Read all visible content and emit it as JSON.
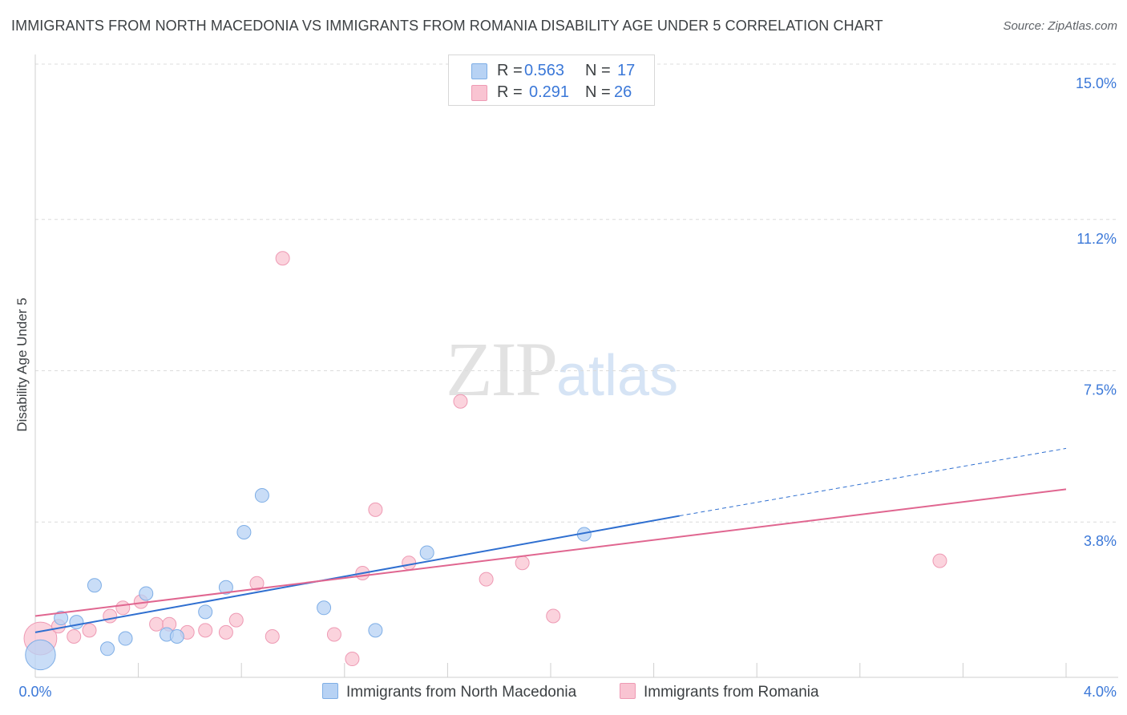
{
  "title": "IMMIGRANTS FROM NORTH MACEDONIA VS IMMIGRANTS FROM ROMANIA DISABILITY AGE UNDER 5 CORRELATION CHART",
  "source": "Source: ZipAtlas.com",
  "watermark": {
    "zip": "ZIP",
    "atlas": "atlas"
  },
  "colors": {
    "blue_fill": "#b7d2f4",
    "blue_stroke": "#7eaee6",
    "blue_line": "#2f6fd0",
    "pink_fill": "#f9c4d2",
    "pink_stroke": "#ee9ab4",
    "pink_line": "#e06690",
    "tick_text": "#3b78d8",
    "grid": "#dcdcdc"
  },
  "legend": {
    "r_label": "R =",
    "n_label": "N =",
    "rows": [
      {
        "r": "0.563",
        "n": "17"
      },
      {
        "r": "0.291",
        "n": "26"
      }
    ]
  },
  "chart_data": {
    "type": "scatter",
    "title": "IMMIGRANTS FROM NORTH MACEDONIA VS IMMIGRANTS FROM ROMANIA DISABILITY AGE UNDER 5 CORRELATION CHART",
    "xlabel": "",
    "ylabel": "Disability Age Under 5",
    "xlim": [
      0,
      4.0
    ],
    "ylim": [
      0,
      15.0
    ],
    "x_tick_labels": [
      "0.0%",
      "4.0%"
    ],
    "y_ticks": [
      3.8,
      7.5,
      11.2,
      15.0
    ],
    "y_tick_labels": [
      "3.8%",
      "7.5%",
      "11.2%",
      "15.0%"
    ],
    "grid": true,
    "legend_position": "top-center",
    "series": [
      {
        "name": "Immigrants from North Macedonia",
        "r": 0.563,
        "n": 17,
        "points": [
          {
            "x": 0.02,
            "y": 0.55,
            "s": 2.2
          },
          {
            "x": 0.1,
            "y": 1.45,
            "s": 1
          },
          {
            "x": 0.16,
            "y": 1.35,
            "s": 1
          },
          {
            "x": 0.23,
            "y": 2.25,
            "s": 1
          },
          {
            "x": 0.28,
            "y": 0.7,
            "s": 1
          },
          {
            "x": 0.35,
            "y": 0.95,
            "s": 1
          },
          {
            "x": 0.43,
            "y": 2.05,
            "s": 1
          },
          {
            "x": 0.51,
            "y": 1.05,
            "s": 1
          },
          {
            "x": 0.55,
            "y": 1.0,
            "s": 1
          },
          {
            "x": 0.66,
            "y": 1.6,
            "s": 1
          },
          {
            "x": 0.74,
            "y": 2.2,
            "s": 1
          },
          {
            "x": 0.81,
            "y": 3.55,
            "s": 1
          },
          {
            "x": 0.88,
            "y": 4.45,
            "s": 1
          },
          {
            "x": 1.12,
            "y": 1.7,
            "s": 1
          },
          {
            "x": 1.32,
            "y": 1.15,
            "s": 1
          },
          {
            "x": 1.52,
            "y": 3.05,
            "s": 1
          },
          {
            "x": 2.13,
            "y": 3.5,
            "s": 1
          }
        ],
        "trend": {
          "x0": 0.0,
          "y0": 1.1,
          "x1": 2.5,
          "y1": 3.95,
          "dashed_to_x": 4.0,
          "dashed_to_y": 5.6
        }
      },
      {
        "name": "Immigrants from Romania",
        "r": 0.291,
        "n": 26,
        "points": [
          {
            "x": 0.02,
            "y": 0.95,
            "s": 2.4
          },
          {
            "x": 0.09,
            "y": 1.25,
            "s": 1
          },
          {
            "x": 0.15,
            "y": 1.0,
            "s": 1
          },
          {
            "x": 0.21,
            "y": 1.15,
            "s": 1
          },
          {
            "x": 0.29,
            "y": 1.5,
            "s": 1
          },
          {
            "x": 0.34,
            "y": 1.7,
            "s": 1
          },
          {
            "x": 0.41,
            "y": 1.85,
            "s": 1
          },
          {
            "x": 0.47,
            "y": 1.3,
            "s": 1
          },
          {
            "x": 0.52,
            "y": 1.3,
            "s": 1
          },
          {
            "x": 0.59,
            "y": 1.1,
            "s": 1
          },
          {
            "x": 0.66,
            "y": 1.15,
            "s": 1
          },
          {
            "x": 0.74,
            "y": 1.1,
            "s": 1
          },
          {
            "x": 0.78,
            "y": 1.4,
            "s": 1
          },
          {
            "x": 0.86,
            "y": 2.3,
            "s": 1
          },
          {
            "x": 0.92,
            "y": 1.0,
            "s": 1
          },
          {
            "x": 0.96,
            "y": 10.25,
            "s": 1
          },
          {
            "x": 1.16,
            "y": 1.05,
            "s": 1
          },
          {
            "x": 1.23,
            "y": 0.45,
            "s": 1
          },
          {
            "x": 1.32,
            "y": 4.1,
            "s": 1
          },
          {
            "x": 1.27,
            "y": 2.55,
            "s": 1
          },
          {
            "x": 1.45,
            "y": 2.8,
            "s": 1
          },
          {
            "x": 1.65,
            "y": 6.75,
            "s": 1
          },
          {
            "x": 1.75,
            "y": 2.4,
            "s": 1
          },
          {
            "x": 1.89,
            "y": 2.8,
            "s": 1
          },
          {
            "x": 2.01,
            "y": 1.5,
            "s": 1
          },
          {
            "x": 3.51,
            "y": 2.85,
            "s": 1
          }
        ],
        "trend": {
          "x0": 0.0,
          "y0": 1.5,
          "x1": 4.0,
          "y1": 4.6
        }
      }
    ]
  }
}
